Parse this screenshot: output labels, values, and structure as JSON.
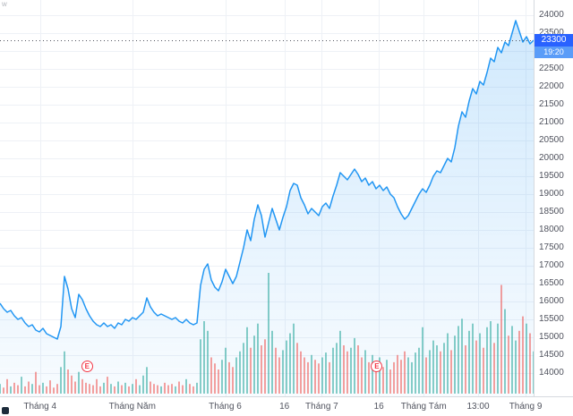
{
  "chart_data": {
    "type": "area",
    "last_price_label": "23300",
    "last_price": 23300,
    "countdown": "19:20",
    "ylim": [
      13350,
      24425
    ],
    "y_ticks": [
      24000,
      23500,
      23000,
      22500,
      22000,
      21500,
      21000,
      20500,
      20000,
      19500,
      19000,
      18500,
      18000,
      17500,
      17000,
      16500,
      16000,
      15500,
      15000,
      14500,
      14000
    ],
    "x_ticks": [
      {
        "label": "Tháng 4",
        "pos": 0.075
      },
      {
        "label": "Tháng Năm",
        "pos": 0.248
      },
      {
        "label": "Tháng 6",
        "pos": 0.422
      },
      {
        "label": "16",
        "pos": 0.533
      },
      {
        "label": "Tháng 7",
        "pos": 0.603
      },
      {
        "label": "16",
        "pos": 0.71
      },
      {
        "label": "Tháng Tám",
        "pos": 0.794
      },
      {
        "label": "13:00",
        "pos": 0.896
      },
      {
        "label": "Tháng 9",
        "pos": 0.985
      }
    ],
    "series": [
      {
        "name": "price",
        "values": [
          15950,
          15800,
          15700,
          15750,
          15600,
          15500,
          15550,
          15400,
          15300,
          15350,
          15200,
          15150,
          15250,
          15100,
          15050,
          15000,
          14950,
          15300,
          16700,
          16350,
          15800,
          15550,
          16200,
          16050,
          15800,
          15600,
          15450,
          15350,
          15300,
          15400,
          15300,
          15350,
          15250,
          15400,
          15350,
          15500,
          15450,
          15550,
          15500,
          15600,
          15700,
          16100,
          15850,
          15700,
          15600,
          15650,
          15600,
          15550,
          15500,
          15550,
          15450,
          15400,
          15500,
          15400,
          15350,
          15400,
          16450,
          16900,
          17050,
          16600,
          16400,
          16300,
          16550,
          16900,
          16700,
          16500,
          16700,
          17100,
          17500,
          18000,
          17700,
          18300,
          18700,
          18400,
          17800,
          18200,
          18600,
          18300,
          18000,
          18350,
          18650,
          19100,
          19300,
          19250,
          18900,
          18700,
          18450,
          18600,
          18500,
          18400,
          18650,
          18750,
          18600,
          18950,
          19250,
          19600,
          19500,
          19400,
          19550,
          19700,
          19550,
          19350,
          19450,
          19250,
          19350,
          19150,
          19250,
          19100,
          19200,
          19000,
          18900,
          18650,
          18450,
          18300,
          18400,
          18600,
          18800,
          19000,
          19150,
          19050,
          19250,
          19500,
          19650,
          19600,
          19800,
          20000,
          19900,
          20300,
          20900,
          21300,
          21150,
          21600,
          21950,
          21800,
          22150,
          22050,
          22400,
          22800,
          22700,
          23100,
          22950,
          23250,
          23150,
          23500,
          23850,
          23550,
          23250,
          23400,
          23200,
          23300
        ]
      }
    ],
    "volume": [
      8,
      5,
      12,
      6,
      9,
      7,
      14,
      6,
      10,
      8,
      18,
      7,
      9,
      6,
      11,
      5,
      8,
      22,
      35,
      20,
      15,
      10,
      18,
      12,
      9,
      8,
      7,
      12,
      6,
      9,
      14,
      8,
      6,
      10,
      7,
      9,
      6,
      8,
      12,
      7,
      15,
      22,
      10,
      8,
      7,
      6,
      9,
      7,
      8,
      6,
      10,
      7,
      12,
      8,
      6,
      9,
      45,
      60,
      52,
      30,
      25,
      20,
      28,
      38,
      26,
      22,
      30,
      35,
      42,
      55,
      38,
      48,
      58,
      40,
      45,
      100,
      52,
      38,
      30,
      36,
      44,
      50,
      58,
      42,
      35,
      30,
      26,
      32,
      28,
      25,
      30,
      34,
      26,
      38,
      42,
      52,
      40,
      35,
      38,
      46,
      40,
      30,
      36,
      26,
      32,
      24,
      30,
      22,
      28,
      20,
      26,
      32,
      28,
      35,
      30,
      26,
      34,
      38,
      55,
      30,
      36,
      44,
      40,
      35,
      42,
      50,
      36,
      48,
      56,
      62,
      40,
      52,
      58,
      44,
      50,
      38,
      55,
      60,
      42,
      58,
      90,
      70,
      48,
      56,
      44,
      52,
      64,
      58,
      50,
      35
    ],
    "earnings_markers": [
      {
        "label": "E",
        "pos": 0.164
      },
      {
        "label": "E",
        "pos": 0.707
      }
    ],
    "colors": {
      "line": "#2196f3",
      "area_top": "rgba(33,150,243,0.22)",
      "area_bottom": "rgba(33,150,243,0.03)",
      "vol_up": "rgba(38,166,154,0.55)",
      "vol_down": "rgba(239,83,80,0.55)",
      "grid": "#eef1f6",
      "axis_text": "#50535e",
      "badge_bg": "#2962ff",
      "countdown_bg": "#5a9cf8",
      "price_line": "#50535e",
      "marker": "#f23645"
    }
  },
  "decor": {
    "watermark_top": "w"
  }
}
